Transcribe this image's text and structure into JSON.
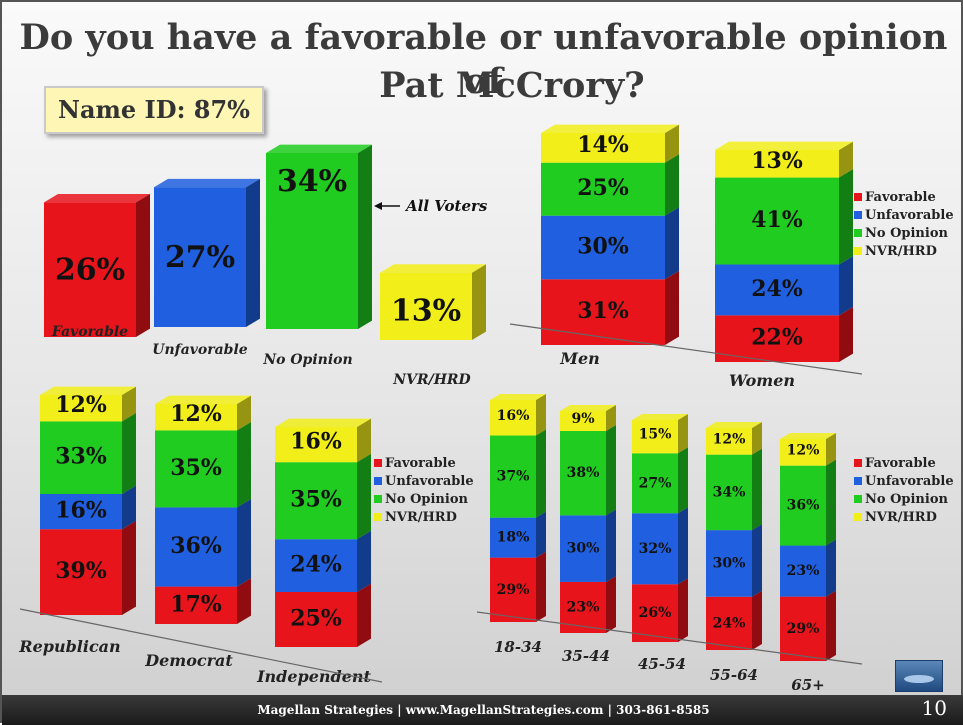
{
  "slide": {
    "title_line1": "Do you have a favorable or unfavorable opinion of",
    "title_line2": "Pat McCrory?",
    "name_id": "Name ID: 87%",
    "footer": "Magellan Strategies | www.MagellanStrategies.com | 303-861-8585",
    "page_number": "10"
  },
  "colors": {
    "Favorable": "#e8141b",
    "Unfavorable": "#1f5fe0",
    "No Opinion": "#1fcc1f",
    "NVR/HRD": "#f2ee1a"
  },
  "chart_data": [
    {
      "type": "bar",
      "categories": [
        "Favorable",
        "Unfavorable",
        "No Opinion",
        "NVR/HRD"
      ],
      "values": [
        26,
        27,
        34,
        13
      ],
      "labels": [
        "26%",
        "27%",
        "34%",
        "13%"
      ],
      "annotation": "All Voters"
    },
    {
      "type": "bar",
      "stacked": true,
      "categories": [
        "Men",
        "Women"
      ],
      "series": [
        {
          "name": "Favorable",
          "values": [
            31,
            22
          ]
        },
        {
          "name": "Unfavorable",
          "values": [
            30,
            24
          ]
        },
        {
          "name": "No Opinion",
          "values": [
            25,
            41
          ]
        },
        {
          "name": "NVR/HRD",
          "values": [
            14,
            13
          ]
        }
      ],
      "legend": [
        "Favorable",
        "Unfavorable",
        "No Opinion",
        "NVR/HRD"
      ]
    },
    {
      "type": "bar",
      "stacked": true,
      "categories": [
        "Republican",
        "Democrat",
        "Independent"
      ],
      "series": [
        {
          "name": "Favorable",
          "values": [
            39,
            17,
            25
          ]
        },
        {
          "name": "Unfavorable",
          "values": [
            16,
            36,
            24
          ]
        },
        {
          "name": "No Opinion",
          "values": [
            33,
            35,
            35
          ]
        },
        {
          "name": "NVR/HRD",
          "values": [
            12,
            12,
            16
          ]
        }
      ],
      "legend": [
        "Favorable",
        "Unfavorable",
        "No Opinion",
        "NVR/HRD"
      ]
    },
    {
      "type": "bar",
      "stacked": true,
      "categories": [
        "18-34",
        "35-44",
        "45-54",
        "55-64",
        "65+"
      ],
      "series": [
        {
          "name": "Favorable",
          "values": [
            29,
            23,
            26,
            24,
            29
          ]
        },
        {
          "name": "Unfavorable",
          "values": [
            18,
            30,
            32,
            30,
            23
          ]
        },
        {
          "name": "No Opinion",
          "values": [
            37,
            38,
            27,
            34,
            36
          ]
        },
        {
          "name": "NVR/HRD",
          "values": [
            16,
            9,
            15,
            12,
            12
          ]
        }
      ],
      "legend": [
        "Favorable",
        "Unfavorable",
        "No Opinion",
        "NVR/HRD"
      ]
    }
  ]
}
